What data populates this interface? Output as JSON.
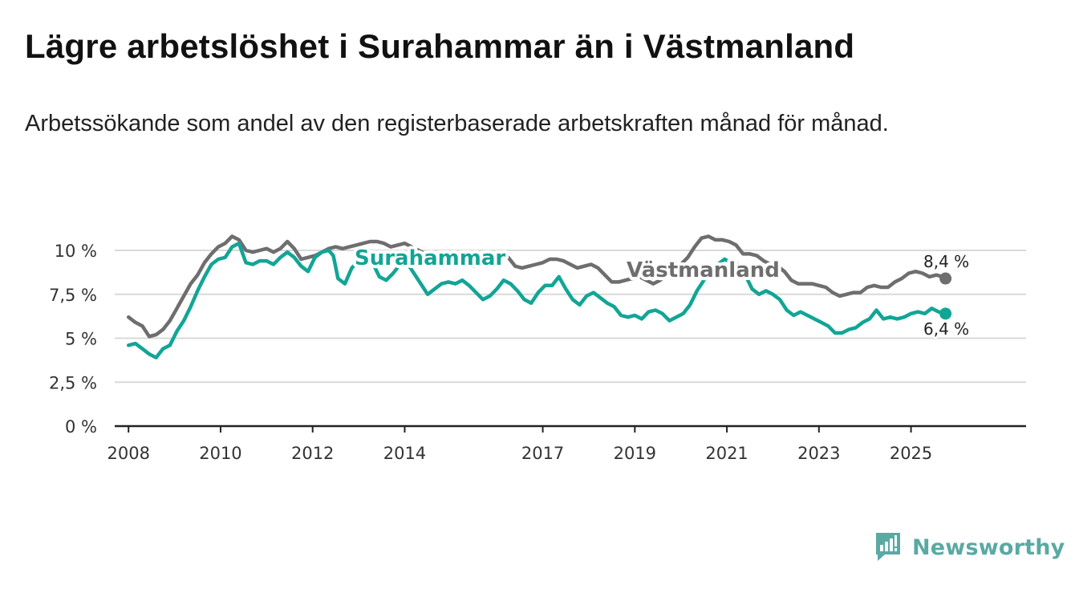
{
  "title": "Lägre arbetslöshet i Surahammar än i Västmanland",
  "subtitle": "Arbetssökande som andel av den registerbaserade arbetskraften månad för månad.",
  "colors": {
    "surahammar": "#12a596",
    "vastmanland": "#6f6d6f",
    "grid": "#d9d9d9",
    "axis": "#222222",
    "logo": "#5aa9a3"
  },
  "brand": {
    "name": "Newsworthy",
    "icon": "bar-chart-logo-icon"
  },
  "chart_data": {
    "type": "line",
    "title": "Lägre arbetslöshet i Surahammar än i Västmanland",
    "xlabel": "",
    "ylabel": "",
    "xlim": [
      2007.7,
      2027.5
    ],
    "ylim": [
      0,
      10
    ],
    "y_ticks": [
      {
        "value": 0,
        "label": "0 %"
      },
      {
        "value": 2.5,
        "label": "2,5 %"
      },
      {
        "value": 5,
        "label": "5 %"
      },
      {
        "value": 7.5,
        "label": "7,5 %"
      },
      {
        "value": 10,
        "label": "10 %"
      }
    ],
    "x_ticks": [
      {
        "value": 2008,
        "label": "2008"
      },
      {
        "value": 2010,
        "label": "2010"
      },
      {
        "value": 2012,
        "label": "2012"
      },
      {
        "value": 2014,
        "label": "2014"
      },
      {
        "value": 2017,
        "label": "2017"
      },
      {
        "value": 2019,
        "label": "2019"
      },
      {
        "value": 2021,
        "label": "2021"
      },
      {
        "value": 2023,
        "label": "2023"
      },
      {
        "value": 2025,
        "label": "2025"
      }
    ],
    "grid": true,
    "series": [
      {
        "name": "Västmanland",
        "color": "#6f6d6f",
        "label": "Västmanland",
        "end_label": "8,4 %",
        "end_value": 8.4,
        "points": [
          [
            2008.0,
            6.2
          ],
          [
            2008.15,
            5.9
          ],
          [
            2008.3,
            5.7
          ],
          [
            2008.45,
            5.1
          ],
          [
            2008.6,
            5.2
          ],
          [
            2008.75,
            5.5
          ],
          [
            2008.9,
            6.0
          ],
          [
            2009.05,
            6.7
          ],
          [
            2009.2,
            7.4
          ],
          [
            2009.35,
            8.1
          ],
          [
            2009.5,
            8.6
          ],
          [
            2009.65,
            9.3
          ],
          [
            2009.8,
            9.8
          ],
          [
            2009.95,
            10.2
          ],
          [
            2010.1,
            10.4
          ],
          [
            2010.25,
            10.8
          ],
          [
            2010.4,
            10.6
          ],
          [
            2010.55,
            10.0
          ],
          [
            2010.7,
            9.9
          ],
          [
            2010.85,
            10.0
          ],
          [
            2011.0,
            10.1
          ],
          [
            2011.15,
            9.9
          ],
          [
            2011.3,
            10.1
          ],
          [
            2011.45,
            10.5
          ],
          [
            2011.6,
            10.1
          ],
          [
            2011.75,
            9.5
          ],
          [
            2011.9,
            9.6
          ],
          [
            2012.05,
            9.7
          ],
          [
            2012.2,
            9.9
          ],
          [
            2012.35,
            10.1
          ],
          [
            2012.5,
            10.2
          ],
          [
            2012.65,
            10.1
          ],
          [
            2012.8,
            10.2
          ],
          [
            2012.95,
            10.3
          ],
          [
            2013.1,
            10.4
          ],
          [
            2013.25,
            10.5
          ],
          [
            2013.4,
            10.5
          ],
          [
            2013.55,
            10.4
          ],
          [
            2013.7,
            10.2
          ],
          [
            2013.85,
            10.3
          ],
          [
            2014.0,
            10.4
          ],
          [
            2014.15,
            10.2
          ],
          [
            2014.3,
            10.0
          ],
          [
            2014.45,
            9.8
          ],
          [
            2014.6,
            9.7
          ],
          [
            2014.75,
            9.5
          ],
          [
            2014.9,
            9.4
          ],
          [
            2015.05,
            9.4
          ],
          [
            2015.2,
            9.3
          ],
          [
            2015.35,
            9.2
          ],
          [
            2015.5,
            9.1
          ],
          [
            2015.65,
            9.3
          ],
          [
            2015.8,
            9.5
          ],
          [
            2015.95,
            9.7
          ],
          [
            2016.1,
            9.7
          ],
          [
            2016.25,
            9.6
          ],
          [
            2016.4,
            9.1
          ],
          [
            2016.55,
            9.0
          ],
          [
            2016.7,
            9.1
          ],
          [
            2016.85,
            9.2
          ],
          [
            2017.0,
            9.3
          ],
          [
            2017.15,
            9.5
          ],
          [
            2017.3,
            9.5
          ],
          [
            2017.45,
            9.4
          ],
          [
            2017.6,
            9.2
          ],
          [
            2017.75,
            9.0
          ],
          [
            2017.9,
            9.1
          ],
          [
            2018.05,
            9.2
          ],
          [
            2018.2,
            9.0
          ],
          [
            2018.35,
            8.6
          ],
          [
            2018.5,
            8.2
          ],
          [
            2018.65,
            8.2
          ],
          [
            2018.8,
            8.3
          ],
          [
            2018.95,
            8.4
          ],
          [
            2019.1,
            8.5
          ],
          [
            2019.25,
            8.3
          ],
          [
            2019.4,
            8.1
          ],
          [
            2019.55,
            8.3
          ],
          [
            2019.7,
            8.6
          ],
          [
            2019.85,
            8.9
          ],
          [
            2020.0,
            9.2
          ],
          [
            2020.15,
            9.6
          ],
          [
            2020.3,
            10.2
          ],
          [
            2020.45,
            10.7
          ],
          [
            2020.6,
            10.8
          ],
          [
            2020.75,
            10.6
          ],
          [
            2020.9,
            10.6
          ],
          [
            2021.05,
            10.5
          ],
          [
            2021.2,
            10.3
          ],
          [
            2021.35,
            9.8
          ],
          [
            2021.5,
            9.8
          ],
          [
            2021.65,
            9.7
          ],
          [
            2021.8,
            9.4
          ],
          [
            2021.95,
            9.2
          ],
          [
            2022.1,
            9.1
          ],
          [
            2022.25,
            8.8
          ],
          [
            2022.4,
            8.3
          ],
          [
            2022.55,
            8.1
          ],
          [
            2022.7,
            8.1
          ],
          [
            2022.85,
            8.1
          ],
          [
            2023.0,
            8.0
          ],
          [
            2023.15,
            7.9
          ],
          [
            2023.3,
            7.6
          ],
          [
            2023.45,
            7.4
          ],
          [
            2023.6,
            7.5
          ],
          [
            2023.75,
            7.6
          ],
          [
            2023.9,
            7.6
          ],
          [
            2024.05,
            7.9
          ],
          [
            2024.2,
            8.0
          ],
          [
            2024.35,
            7.9
          ],
          [
            2024.5,
            7.9
          ],
          [
            2024.65,
            8.2
          ],
          [
            2024.8,
            8.4
          ],
          [
            2024.95,
            8.7
          ],
          [
            2025.1,
            8.8
          ],
          [
            2025.25,
            8.7
          ],
          [
            2025.4,
            8.5
          ],
          [
            2025.55,
            8.6
          ],
          [
            2025.7,
            8.5
          ],
          [
            2025.75,
            8.4
          ]
        ]
      },
      {
        "name": "Surahammar",
        "color": "#12a596",
        "label": "Surahammar",
        "end_label": "6,4 %",
        "end_value": 6.4,
        "points": [
          [
            2008.0,
            4.6
          ],
          [
            2008.15,
            4.7
          ],
          [
            2008.3,
            4.4
          ],
          [
            2008.45,
            4.1
          ],
          [
            2008.6,
            3.9
          ],
          [
            2008.75,
            4.4
          ],
          [
            2008.9,
            4.6
          ],
          [
            2009.05,
            5.4
          ],
          [
            2009.2,
            6.0
          ],
          [
            2009.35,
            6.8
          ],
          [
            2009.5,
            7.7
          ],
          [
            2009.65,
            8.5
          ],
          [
            2009.8,
            9.2
          ],
          [
            2009.95,
            9.5
          ],
          [
            2010.1,
            9.6
          ],
          [
            2010.25,
            10.2
          ],
          [
            2010.4,
            10.4
          ],
          [
            2010.55,
            9.3
          ],
          [
            2010.7,
            9.2
          ],
          [
            2010.85,
            9.4
          ],
          [
            2011.0,
            9.4
          ],
          [
            2011.15,
            9.2
          ],
          [
            2011.3,
            9.6
          ],
          [
            2011.45,
            9.9
          ],
          [
            2011.6,
            9.6
          ],
          [
            2011.75,
            9.1
          ],
          [
            2011.9,
            8.8
          ],
          [
            2012.05,
            9.6
          ],
          [
            2012.2,
            9.9
          ],
          [
            2012.35,
            10.0
          ],
          [
            2012.45,
            9.7
          ],
          [
            2012.55,
            8.4
          ],
          [
            2012.7,
            8.1
          ],
          [
            2012.85,
            9.0
          ],
          [
            2013.0,
            9.4
          ],
          [
            2013.15,
            9.6
          ],
          [
            2013.3,
            9.3
          ],
          [
            2013.45,
            8.5
          ],
          [
            2013.6,
            8.3
          ],
          [
            2013.75,
            8.7
          ],
          [
            2013.9,
            9.2
          ],
          [
            2014.05,
            9.3
          ],
          [
            2014.2,
            8.7
          ],
          [
            2014.35,
            8.1
          ],
          [
            2014.5,
            7.5
          ],
          [
            2014.65,
            7.8
          ],
          [
            2014.8,
            8.1
          ],
          [
            2014.95,
            8.2
          ],
          [
            2015.1,
            8.1
          ],
          [
            2015.25,
            8.3
          ],
          [
            2015.4,
            8.0
          ],
          [
            2015.55,
            7.6
          ],
          [
            2015.7,
            7.2
          ],
          [
            2015.85,
            7.4
          ],
          [
            2016.0,
            7.8
          ],
          [
            2016.15,
            8.3
          ],
          [
            2016.3,
            8.1
          ],
          [
            2016.45,
            7.7
          ],
          [
            2016.6,
            7.2
          ],
          [
            2016.75,
            7.0
          ],
          [
            2016.9,
            7.6
          ],
          [
            2017.05,
            8.0
          ],
          [
            2017.2,
            8.0
          ],
          [
            2017.35,
            8.5
          ],
          [
            2017.5,
            7.8
          ],
          [
            2017.65,
            7.2
          ],
          [
            2017.8,
            6.9
          ],
          [
            2017.95,
            7.4
          ],
          [
            2018.1,
            7.6
          ],
          [
            2018.25,
            7.3
          ],
          [
            2018.4,
            7.0
          ],
          [
            2018.55,
            6.8
          ],
          [
            2018.7,
            6.3
          ],
          [
            2018.85,
            6.2
          ],
          [
            2019.0,
            6.3
          ],
          [
            2019.15,
            6.1
          ],
          [
            2019.3,
            6.5
          ],
          [
            2019.45,
            6.6
          ],
          [
            2019.6,
            6.4
          ],
          [
            2019.75,
            6.0
          ],
          [
            2019.9,
            6.2
          ],
          [
            2020.05,
            6.4
          ],
          [
            2020.2,
            6.9
          ],
          [
            2020.35,
            7.7
          ],
          [
            2020.5,
            8.3
          ],
          [
            2020.65,
            8.9
          ],
          [
            2020.8,
            9.2
          ],
          [
            2020.95,
            9.5
          ],
          [
            2021.1,
            9.3
          ],
          [
            2021.25,
            9.2
          ],
          [
            2021.4,
            8.6
          ],
          [
            2021.55,
            7.8
          ],
          [
            2021.7,
            7.5
          ],
          [
            2021.85,
            7.7
          ],
          [
            2022.0,
            7.5
          ],
          [
            2022.15,
            7.2
          ],
          [
            2022.3,
            6.6
          ],
          [
            2022.45,
            6.3
          ],
          [
            2022.6,
            6.5
          ],
          [
            2022.75,
            6.3
          ],
          [
            2022.9,
            6.1
          ],
          [
            2023.05,
            5.9
          ],
          [
            2023.2,
            5.7
          ],
          [
            2023.35,
            5.3
          ],
          [
            2023.5,
            5.3
          ],
          [
            2023.65,
            5.5
          ],
          [
            2023.8,
            5.6
          ],
          [
            2023.95,
            5.9
          ],
          [
            2024.1,
            6.1
          ],
          [
            2024.25,
            6.6
          ],
          [
            2024.4,
            6.1
          ],
          [
            2024.55,
            6.2
          ],
          [
            2024.7,
            6.1
          ],
          [
            2024.85,
            6.2
          ],
          [
            2025.0,
            6.4
          ],
          [
            2025.15,
            6.5
          ],
          [
            2025.3,
            6.4
          ],
          [
            2025.45,
            6.7
          ],
          [
            2025.6,
            6.5
          ],
          [
            2025.75,
            6.4
          ]
        ]
      }
    ]
  }
}
